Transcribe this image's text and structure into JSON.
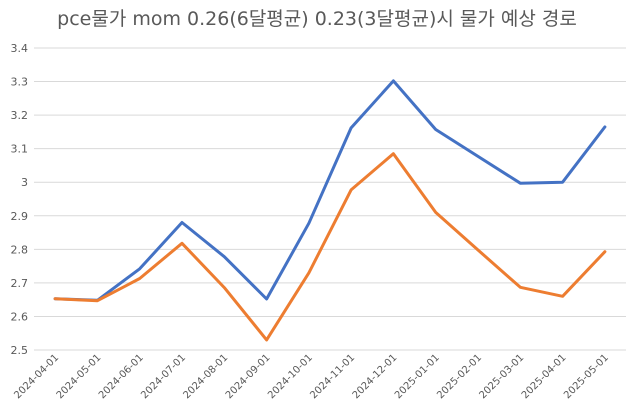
{
  "chart_data": {
    "type": "line",
    "title": "pce물가 mom 0.26(6달평균) 0.23(3달평균)시 물가 예상 경로",
    "xlabel": "",
    "ylabel": "",
    "ylim": [
      2.5,
      3.4
    ],
    "yticks": [
      "2.5",
      "2.6",
      "2.7",
      "2.8",
      "2.9",
      "3",
      "3.1",
      "3.2",
      "3.3",
      "3.4"
    ],
    "grid": true,
    "legend": "none",
    "categories": [
      "2024-04-01",
      "2024-05-01",
      "2024-06-01",
      "2024-07-01",
      "2024-08-01",
      "2024-09-01",
      "2024-10-01",
      "2024-11-01",
      "2024-12-01",
      "2025-01-01",
      "2025-02-01",
      "2025-03-01",
      "2025-04-01",
      "2025-05-01"
    ],
    "series": [
      {
        "color": "#4472C4",
        "values": [
          2.653,
          2.648,
          2.742,
          2.88,
          2.778,
          2.652,
          2.878,
          3.162,
          3.302,
          3.157,
          3.077,
          2.997,
          3.0,
          3.165
        ]
      },
      {
        "color": "#ED7D31",
        "values": [
          2.653,
          2.647,
          2.713,
          2.818,
          2.686,
          2.53,
          2.73,
          2.977,
          3.085,
          2.91,
          2.798,
          2.687,
          2.66,
          2.793
        ]
      }
    ]
  }
}
